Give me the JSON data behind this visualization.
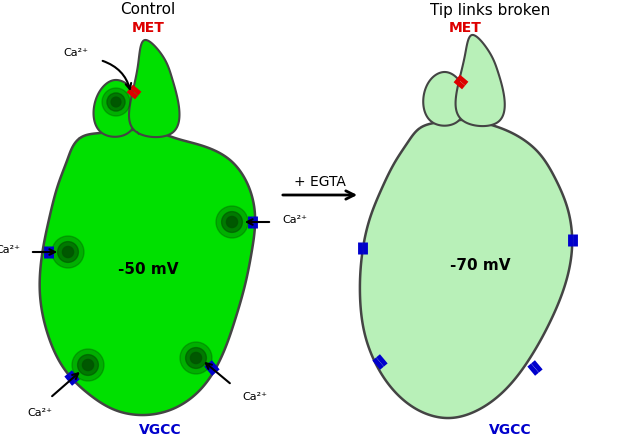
{
  "title_left": "Control",
  "title_right": "Tip links broken",
  "arrow_label": "+ EGTA",
  "voltage_left": "-50 mV",
  "voltage_right": "-70 mV",
  "met_label": "MET",
  "vgcc_label": "VGCC",
  "ca_label": "Ca²⁺",
  "cell_color_left": "#00e000",
  "cell_color_right": "#b8f0b8",
  "cell_edge_color": "#444444",
  "ca_spot_color": "#005500",
  "blue_channel": "#0000cc",
  "red_met": "#dd0000",
  "bg_color": "#ffffff",
  "arrow_color": "#000000"
}
